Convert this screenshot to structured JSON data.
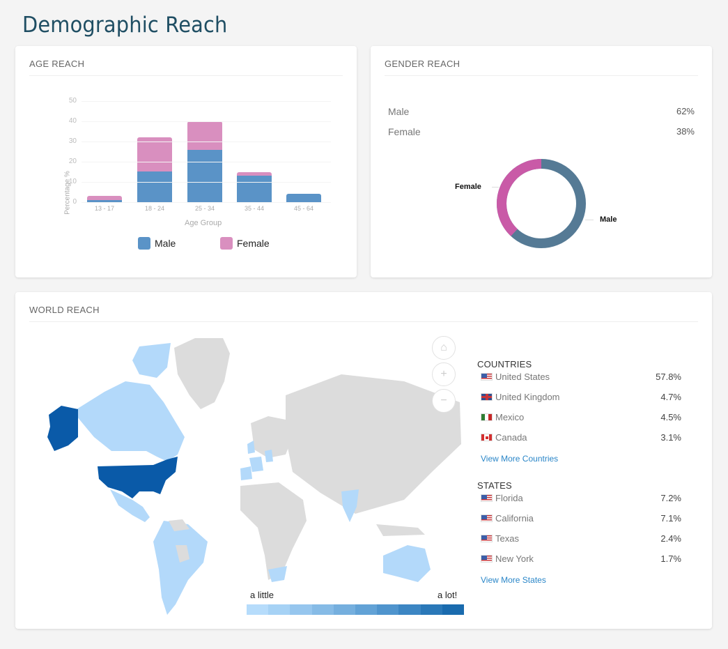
{
  "page": {
    "title": "Demographic Reach"
  },
  "age_reach": {
    "title": "AGE REACH",
    "y_axis_label": "Percentage %",
    "x_axis_label": "Age Group",
    "y_ticks": [
      "50",
      "40",
      "30",
      "20",
      "10",
      "0"
    ],
    "legend": {
      "male": "Male",
      "female": "Female"
    }
  },
  "gender_reach": {
    "title": "GENDER REACH",
    "rows": [
      {
        "label": "Male",
        "value": "62%"
      },
      {
        "label": "Female",
        "value": "38%"
      }
    ],
    "donut_labels": {
      "female": "Female",
      "male": "Male"
    }
  },
  "world_reach": {
    "title": "WORLD REACH",
    "map_controls": {
      "home": "⌂",
      "zoom_in": "+",
      "zoom_out": "−"
    },
    "scale": {
      "low": "a little",
      "high": "a lot!",
      "colors": [
        "#b6dcfb",
        "#a6d2f5",
        "#96c6ee",
        "#86bbe6",
        "#75afde",
        "#62a2d6",
        "#4f94cd",
        "#3c86c3",
        "#2a78b8",
        "#1a6bae"
      ]
    },
    "countries": {
      "heading": "COUNTRIES",
      "items": [
        {
          "flag": "us",
          "name": "United States",
          "value": "57.8%"
        },
        {
          "flag": "uk",
          "name": "United Kingdom",
          "value": "4.7%"
        },
        {
          "flag": "mx",
          "name": "Mexico",
          "value": "4.5%"
        },
        {
          "flag": "ca",
          "name": "Canada",
          "value": "3.1%"
        }
      ],
      "view_more": "View More Countries"
    },
    "states": {
      "heading": "STATES",
      "items": [
        {
          "flag": "us",
          "name": "Florida",
          "value": "7.2%"
        },
        {
          "flag": "us",
          "name": "California",
          "value": "7.1%"
        },
        {
          "flag": "us",
          "name": "Texas",
          "value": "2.4%"
        },
        {
          "flag": "us",
          "name": "New York",
          "value": "1.7%"
        }
      ],
      "view_more": "View More States"
    }
  },
  "chart_data": [
    {
      "type": "bar",
      "stacked": true,
      "title": "AGE REACH",
      "xlabel": "Age Group",
      "ylabel": "Percentage %",
      "ylim": [
        0,
        50
      ],
      "categories": [
        "13 - 17",
        "18 - 24",
        "25 - 34",
        "35 - 44",
        "45 - 64"
      ],
      "series": [
        {
          "name": "Male",
          "color": "#5a93c7",
          "values": [
            1,
            15,
            26,
            13,
            4
          ]
        },
        {
          "name": "Female",
          "color": "#d98fbf",
          "values": [
            2,
            17,
            14,
            2,
            0
          ]
        }
      ],
      "legend_position": "bottom"
    },
    {
      "type": "pie",
      "donut": true,
      "title": "GENDER REACH",
      "categories": [
        "Male",
        "Female"
      ],
      "values": [
        62,
        38
      ],
      "colors": [
        "#557a95",
        "#c95aa7"
      ]
    }
  ]
}
